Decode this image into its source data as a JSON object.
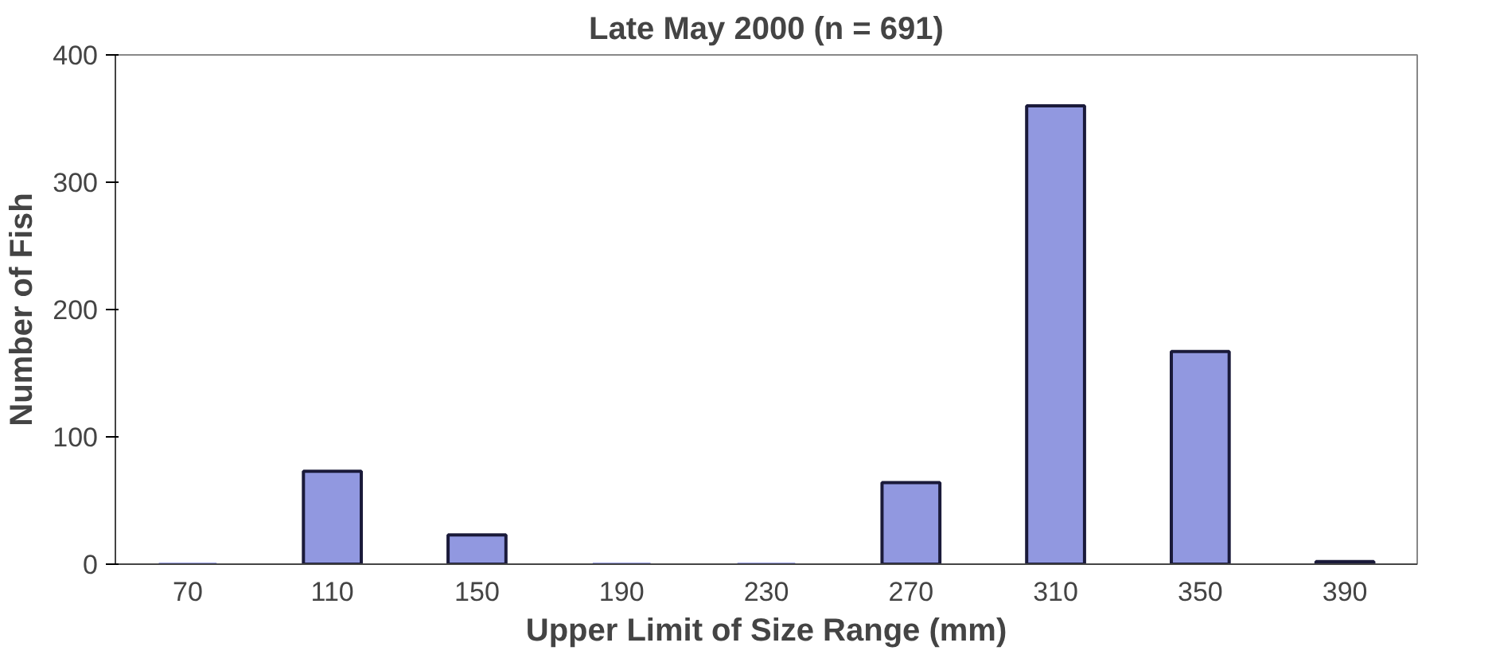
{
  "chart_data": {
    "type": "bar",
    "title": "Late May 2000 (n = 691)",
    "xlabel": "Upper Limit of Size Range (mm)",
    "ylabel": "Number of Fish",
    "categories": [
      "70",
      "110",
      "150",
      "190",
      "230",
      "270",
      "310",
      "350",
      "390"
    ],
    "values": [
      0,
      73,
      23,
      0,
      0,
      64,
      360,
      167,
      2
    ],
    "color": "#9198e0",
    "ylim": [
      0,
      400
    ],
    "yticks": [
      0,
      100,
      200,
      300,
      400
    ],
    "grid": false
  }
}
